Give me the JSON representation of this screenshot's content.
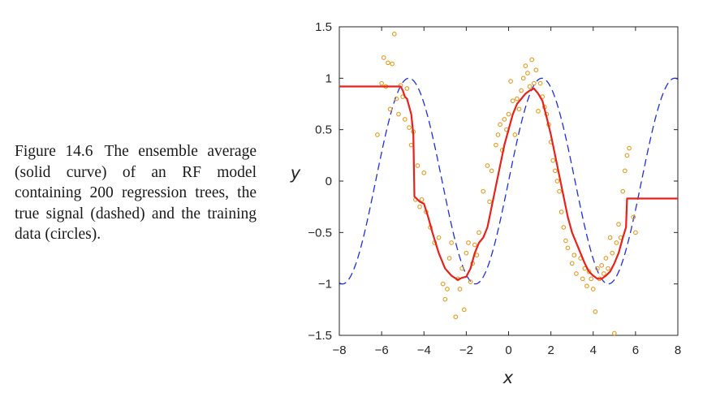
{
  "caption": {
    "label": "Figure 14.6",
    "text": "The ensemble average (solid curve) of an RF model containing 200 regression trees, the true signal (dashed) and the training data (circles)."
  },
  "chart_data": {
    "type": "line",
    "xlabel": "x",
    "ylabel": "y",
    "xlim": [
      -8,
      8
    ],
    "ylim": [
      -1.5,
      1.5
    ],
    "xticks": [
      -8,
      -6,
      -4,
      -2,
      0,
      2,
      4,
      6,
      8
    ],
    "xtick_labels": [
      "−8",
      "−6",
      "−4",
      "−2",
      "0",
      "2",
      "4",
      "6",
      "8"
    ],
    "yticks": [
      -1.5,
      -1,
      -0.5,
      0,
      0.5,
      1,
      1.5
    ],
    "ytick_labels": [
      "−1.5",
      "−1",
      "−0.5",
      "0",
      "0.5",
      "1",
      "1.5"
    ],
    "grid": false,
    "colors": {
      "true_signal": "#1f2ee0",
      "ensemble": "#e8211a",
      "data": "#e69a1c"
    },
    "series": [
      {
        "kind": "dashed",
        "function": "sin(x)",
        "x_range": [
          -8,
          8
        ]
      },
      {
        "kind": "solid",
        "x": [
          -8,
          -5.1,
          -5.0,
          -4.9,
          -4.8,
          -4.6,
          -4.5,
          -4.45,
          -4.2,
          -4.0,
          -3.8,
          -3.6,
          -3.3,
          -3.0,
          -2.7,
          -2.4,
          -2.2,
          -2.0,
          -1.8,
          -1.6,
          -1.4,
          -1.2,
          -1.0,
          -0.8,
          -0.6,
          -0.4,
          -0.2,
          0.0,
          0.2,
          0.4,
          0.6,
          0.8,
          1.0,
          1.2,
          1.4,
          1.6,
          1.8,
          2.0,
          2.2,
          2.4,
          2.6,
          2.8,
          3.0,
          3.2,
          3.4,
          3.6,
          3.8,
          4.0,
          4.2,
          4.4,
          4.6,
          4.8,
          5.0,
          5.2,
          5.4,
          5.55,
          5.6,
          8
        ],
        "y": [
          0.92,
          0.92,
          0.88,
          0.82,
          0.8,
          0.65,
          0.45,
          -0.15,
          -0.2,
          -0.22,
          -0.35,
          -0.5,
          -0.7,
          -0.85,
          -0.92,
          -0.96,
          -0.94,
          -0.93,
          -0.85,
          -0.7,
          -0.6,
          -0.55,
          -0.45,
          -0.25,
          -0.05,
          0.15,
          0.35,
          0.5,
          0.65,
          0.75,
          0.8,
          0.85,
          0.88,
          0.9,
          0.85,
          0.78,
          0.62,
          0.45,
          0.25,
          0.05,
          -0.15,
          -0.35,
          -0.5,
          -0.6,
          -0.7,
          -0.8,
          -0.88,
          -0.92,
          -0.95,
          -0.95,
          -0.92,
          -0.88,
          -0.8,
          -0.7,
          -0.55,
          -0.45,
          -0.17,
          -0.17
        ]
      },
      {
        "kind": "circles",
        "x": [
          -6.2,
          -6.0,
          -5.9,
          -5.8,
          -5.7,
          -5.6,
          -5.5,
          -5.4,
          -5.3,
          -5.2,
          -5.1,
          -5.0,
          -4.9,
          -4.8,
          -4.7,
          -4.6,
          -4.5,
          -4.4,
          -4.3,
          -4.2,
          -4.1,
          -4.0,
          -3.9,
          -3.7,
          -3.5,
          -3.3,
          -3.1,
          -3.0,
          -2.9,
          -2.8,
          -2.7,
          -2.5,
          -2.4,
          -2.3,
          -2.2,
          -2.1,
          -2.0,
          -1.9,
          -1.8,
          -1.7,
          -1.6,
          -1.5,
          -1.4,
          -1.2,
          -1.0,
          -0.9,
          -0.8,
          -0.6,
          -0.5,
          -0.4,
          -0.3,
          -0.2,
          -0.1,
          0.0,
          0.1,
          0.2,
          0.3,
          0.4,
          0.5,
          0.6,
          0.7,
          0.8,
          0.9,
          1.0,
          1.1,
          1.2,
          1.3,
          1.4,
          1.5,
          1.6,
          1.7,
          1.8,
          1.9,
          2.0,
          2.1,
          2.2,
          2.3,
          2.4,
          2.5,
          2.6,
          2.7,
          2.8,
          3.0,
          3.1,
          3.2,
          3.4,
          3.5,
          3.6,
          3.7,
          3.8,
          3.9,
          4.0,
          4.1,
          4.2,
          4.3,
          4.4,
          4.5,
          4.6,
          4.7,
          4.8,
          4.9,
          5.0,
          5.1,
          5.2,
          5.3,
          5.4,
          5.5,
          5.6,
          5.7,
          5.9,
          6.0
        ],
        "y": [
          0.45,
          0.95,
          1.2,
          0.92,
          1.15,
          0.7,
          1.14,
          1.43,
          0.8,
          0.65,
          0.93,
          0.82,
          0.6,
          0.9,
          0.52,
          0.35,
          0.48,
          -0.18,
          0.15,
          -0.25,
          -0.18,
          0.08,
          -0.3,
          -0.45,
          -0.6,
          -0.55,
          -1.0,
          -1.15,
          -1.05,
          -0.75,
          -0.6,
          -1.32,
          -0.95,
          -1.05,
          -0.85,
          -1.25,
          -0.7,
          -0.6,
          -0.98,
          -0.8,
          -0.62,
          -0.72,
          -0.5,
          -0.1,
          0.15,
          -0.2,
          0.1,
          0.35,
          0.45,
          0.55,
          0.3,
          0.6,
          0.5,
          0.65,
          0.97,
          0.78,
          0.45,
          0.8,
          0.7,
          0.88,
          1.0,
          1.12,
          1.05,
          0.92,
          1.18,
          0.95,
          1.08,
          0.68,
          0.95,
          0.82,
          0.72,
          0.65,
          0.55,
          0.38,
          0.2,
          0.1,
          0.0,
          -0.1,
          -0.3,
          -0.45,
          -0.58,
          -0.65,
          -0.8,
          -0.72,
          -0.9,
          -0.75,
          -0.95,
          -0.85,
          -1.02,
          -0.88,
          -0.95,
          -1.05,
          -1.27,
          -0.85,
          -0.95,
          -0.82,
          -0.9,
          -0.75,
          -0.85,
          -0.55,
          -0.7,
          -1.48,
          -0.6,
          -0.42,
          -0.55,
          -0.1,
          0.1,
          0.25,
          0.32,
          -0.35,
          -0.5
        ]
      }
    ]
  }
}
